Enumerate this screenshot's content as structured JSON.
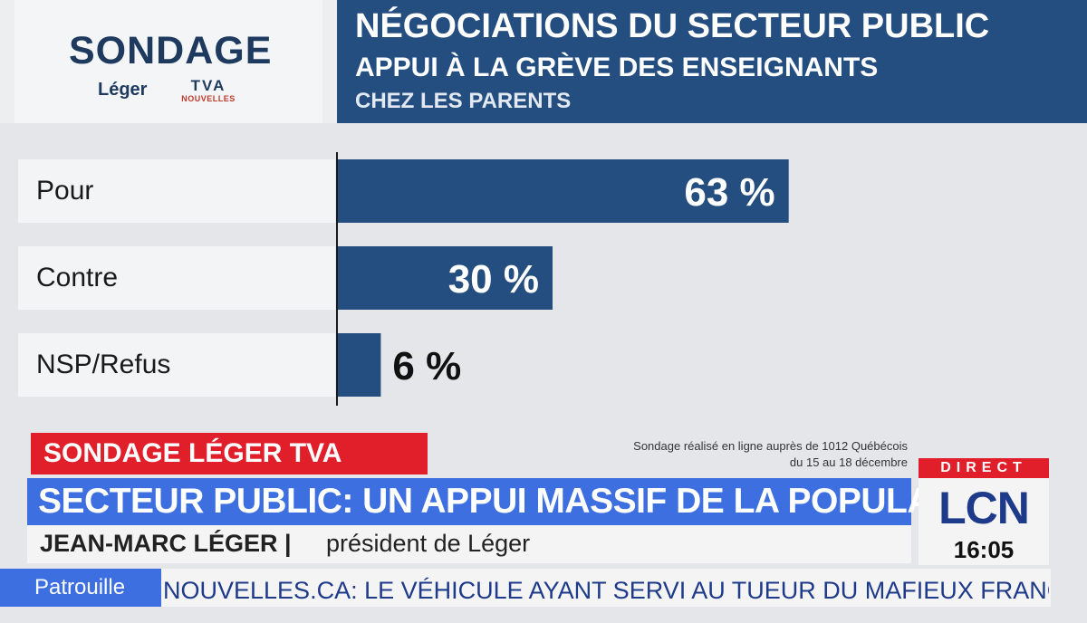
{
  "logo": {
    "title": "SONDAGE",
    "brand1": "Léger",
    "brand2": "TVA",
    "brand2_sub": "NOUVELLES"
  },
  "header": {
    "title": "NÉGOCIATIONS DU SECTEUR PUBLIC",
    "subtitle": "APPUI À LA GRÈVE DES ENSEIGNANTS",
    "subtitle2": "CHEZ LES PARENTS"
  },
  "chart_data": {
    "type": "bar",
    "orientation": "horizontal",
    "title": "NÉGOCIATIONS DU SECTEUR PUBLIC",
    "subtitle": "APPUI À LA GRÈVE DES ENSEIGNANTS",
    "categories": [
      "Pour",
      "Contre",
      "NSP/Refus"
    ],
    "values": [
      63,
      30,
      6
    ],
    "value_labels": [
      "63 %",
      "30 %",
      "6 %"
    ],
    "unit": "%",
    "xlim": [
      0,
      100
    ],
    "bar_color": "#244d80",
    "grid": false
  },
  "strap": {
    "label": "SONDAGE LÉGER TVA",
    "source_line1": "Sondage réalisé en ligne auprès de 1012 Québécois",
    "source_line2": "du 15 au 18 décembre",
    "headline": "SECTEUR PUBLIC: UN APPUI MASSIF DE LA POPULATION",
    "speaker_name": "JEAN-MARC LÉGER |",
    "speaker_role": "président de Léger"
  },
  "channel": {
    "direct": "DIRECT",
    "name": "LCN",
    "time": "16:05"
  },
  "ticker": {
    "label": "Patrouille",
    "text": "NOUVELLES.CA: LE VÉHICULE AYANT SERVI AU TUEUR DU MAFIEUX FRANC"
  },
  "colors": {
    "navy": "#244d80",
    "red": "#e11f2b",
    "blue": "#3d6fe0",
    "lcn_blue": "#1e3a8a"
  }
}
